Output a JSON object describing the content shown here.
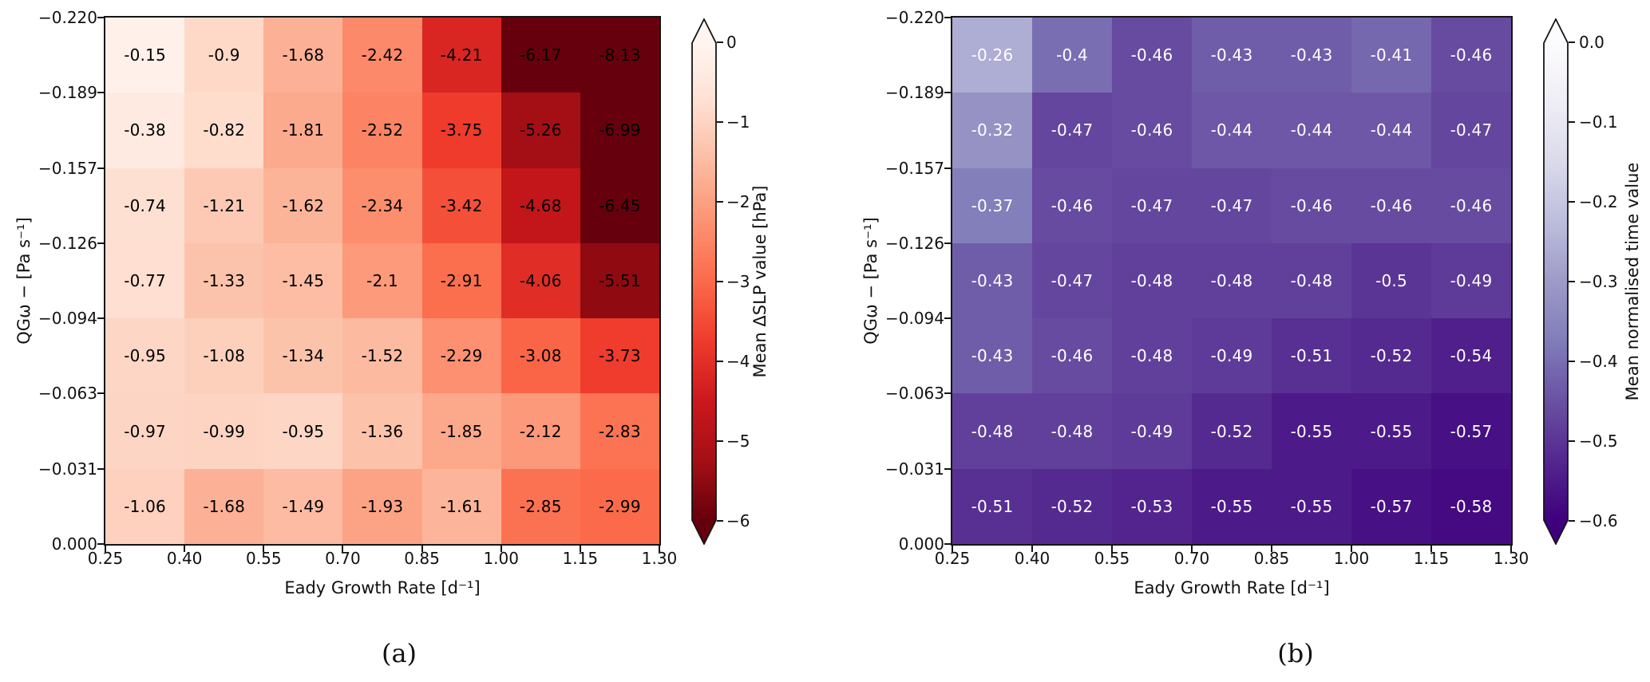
{
  "figure": {
    "background": "#ffffff",
    "captions": {
      "a": "(a)",
      "b": "(b)"
    }
  },
  "chart_data": [
    {
      "type": "heatmap",
      "panel": "a",
      "title": "",
      "xlabel": "Eady Growth Rate [d⁻¹]",
      "ylabel": "QGω − [Pa s⁻¹]",
      "x_tick_labels": [
        "0.25",
        "0.40",
        "0.55",
        "0.70",
        "0.85",
        "1.00",
        "1.15",
        "1.30"
      ],
      "y_tick_labels": [
        "−0.220",
        "−0.189",
        "−0.157",
        "−0.126",
        "−0.094",
        "−0.063",
        "−0.031",
        "0.000"
      ],
      "values": [
        [
          -0.15,
          -0.9,
          -1.68,
          -2.42,
          -4.21,
          -6.17,
          -8.13
        ],
        [
          -0.38,
          -0.82,
          -1.81,
          -2.52,
          -3.75,
          -5.26,
          -6.99
        ],
        [
          -0.74,
          -1.21,
          -1.62,
          -2.34,
          -3.42,
          -4.68,
          -6.45
        ],
        [
          -0.77,
          -1.33,
          -1.45,
          -2.1,
          -2.91,
          -4.06,
          -5.51
        ],
        [
          -0.95,
          -1.08,
          -1.34,
          -1.52,
          -2.29,
          -3.08,
          -3.73
        ],
        [
          -0.97,
          -0.99,
          -0.95,
          -1.36,
          -1.85,
          -2.12,
          -2.83
        ],
        [
          -1.06,
          -1.68,
          -1.49,
          -1.93,
          -1.61,
          -2.85,
          -2.99
        ]
      ],
      "value_domain": [
        0,
        -6
      ],
      "grid": false,
      "cell_text_color": "#000000",
      "colormap": {
        "name": "Reds",
        "stops": [
          "#fff5f0",
          "#fee0d2",
          "#fcbba1",
          "#fc9272",
          "#fb6a4a",
          "#ef3b2c",
          "#cb181d",
          "#a50f15",
          "#67000d"
        ]
      },
      "colorbar": {
        "label": "Mean ΔSLP value [hPa]",
        "tick_labels": [
          "0",
          "−1",
          "−2",
          "−3",
          "−4",
          "−5",
          "−6"
        ],
        "extend": "both"
      }
    },
    {
      "type": "heatmap",
      "panel": "b",
      "title": "",
      "xlabel": "Eady Growth Rate [d⁻¹]",
      "ylabel": "QGω − [Pa s⁻¹]",
      "x_tick_labels": [
        "0.25",
        "0.40",
        "0.55",
        "0.70",
        "0.85",
        "1.00",
        "1.15",
        "1.30"
      ],
      "y_tick_labels": [
        "−0.220",
        "−0.189",
        "−0.157",
        "−0.126",
        "−0.094",
        "−0.063",
        "−0.031",
        "0.000"
      ],
      "values": [
        [
          -0.26,
          -0.4,
          -0.46,
          -0.43,
          -0.43,
          -0.41,
          -0.46
        ],
        [
          -0.32,
          -0.47,
          -0.46,
          -0.44,
          -0.44,
          -0.44,
          -0.47
        ],
        [
          -0.37,
          -0.46,
          -0.47,
          -0.47,
          -0.46,
          -0.46,
          -0.46
        ],
        [
          -0.43,
          -0.47,
          -0.48,
          -0.48,
          -0.48,
          -0.5,
          -0.49
        ],
        [
          -0.43,
          -0.46,
          -0.48,
          -0.49,
          -0.51,
          -0.52,
          -0.54
        ],
        [
          -0.48,
          -0.48,
          -0.49,
          -0.52,
          -0.55,
          -0.55,
          -0.57
        ],
        [
          -0.51,
          -0.52,
          -0.53,
          -0.55,
          -0.55,
          -0.57,
          -0.58
        ]
      ],
      "value_domain": [
        0,
        -0.6
      ],
      "grid": false,
      "cell_text_color": "#ffffff",
      "colormap": {
        "name": "Purples",
        "stops": [
          "#fcfbfd",
          "#efedf5",
          "#dadaeb",
          "#bcbddc",
          "#9e9ac8",
          "#807dba",
          "#6a51a3",
          "#54278f",
          "#3f007d"
        ]
      },
      "colorbar": {
        "label": "Mean normalised time value",
        "tick_labels": [
          "0.0",
          "−0.1",
          "−0.2",
          "−0.3",
          "−0.4",
          "−0.5",
          "−0.6"
        ],
        "extend": "both"
      }
    }
  ]
}
